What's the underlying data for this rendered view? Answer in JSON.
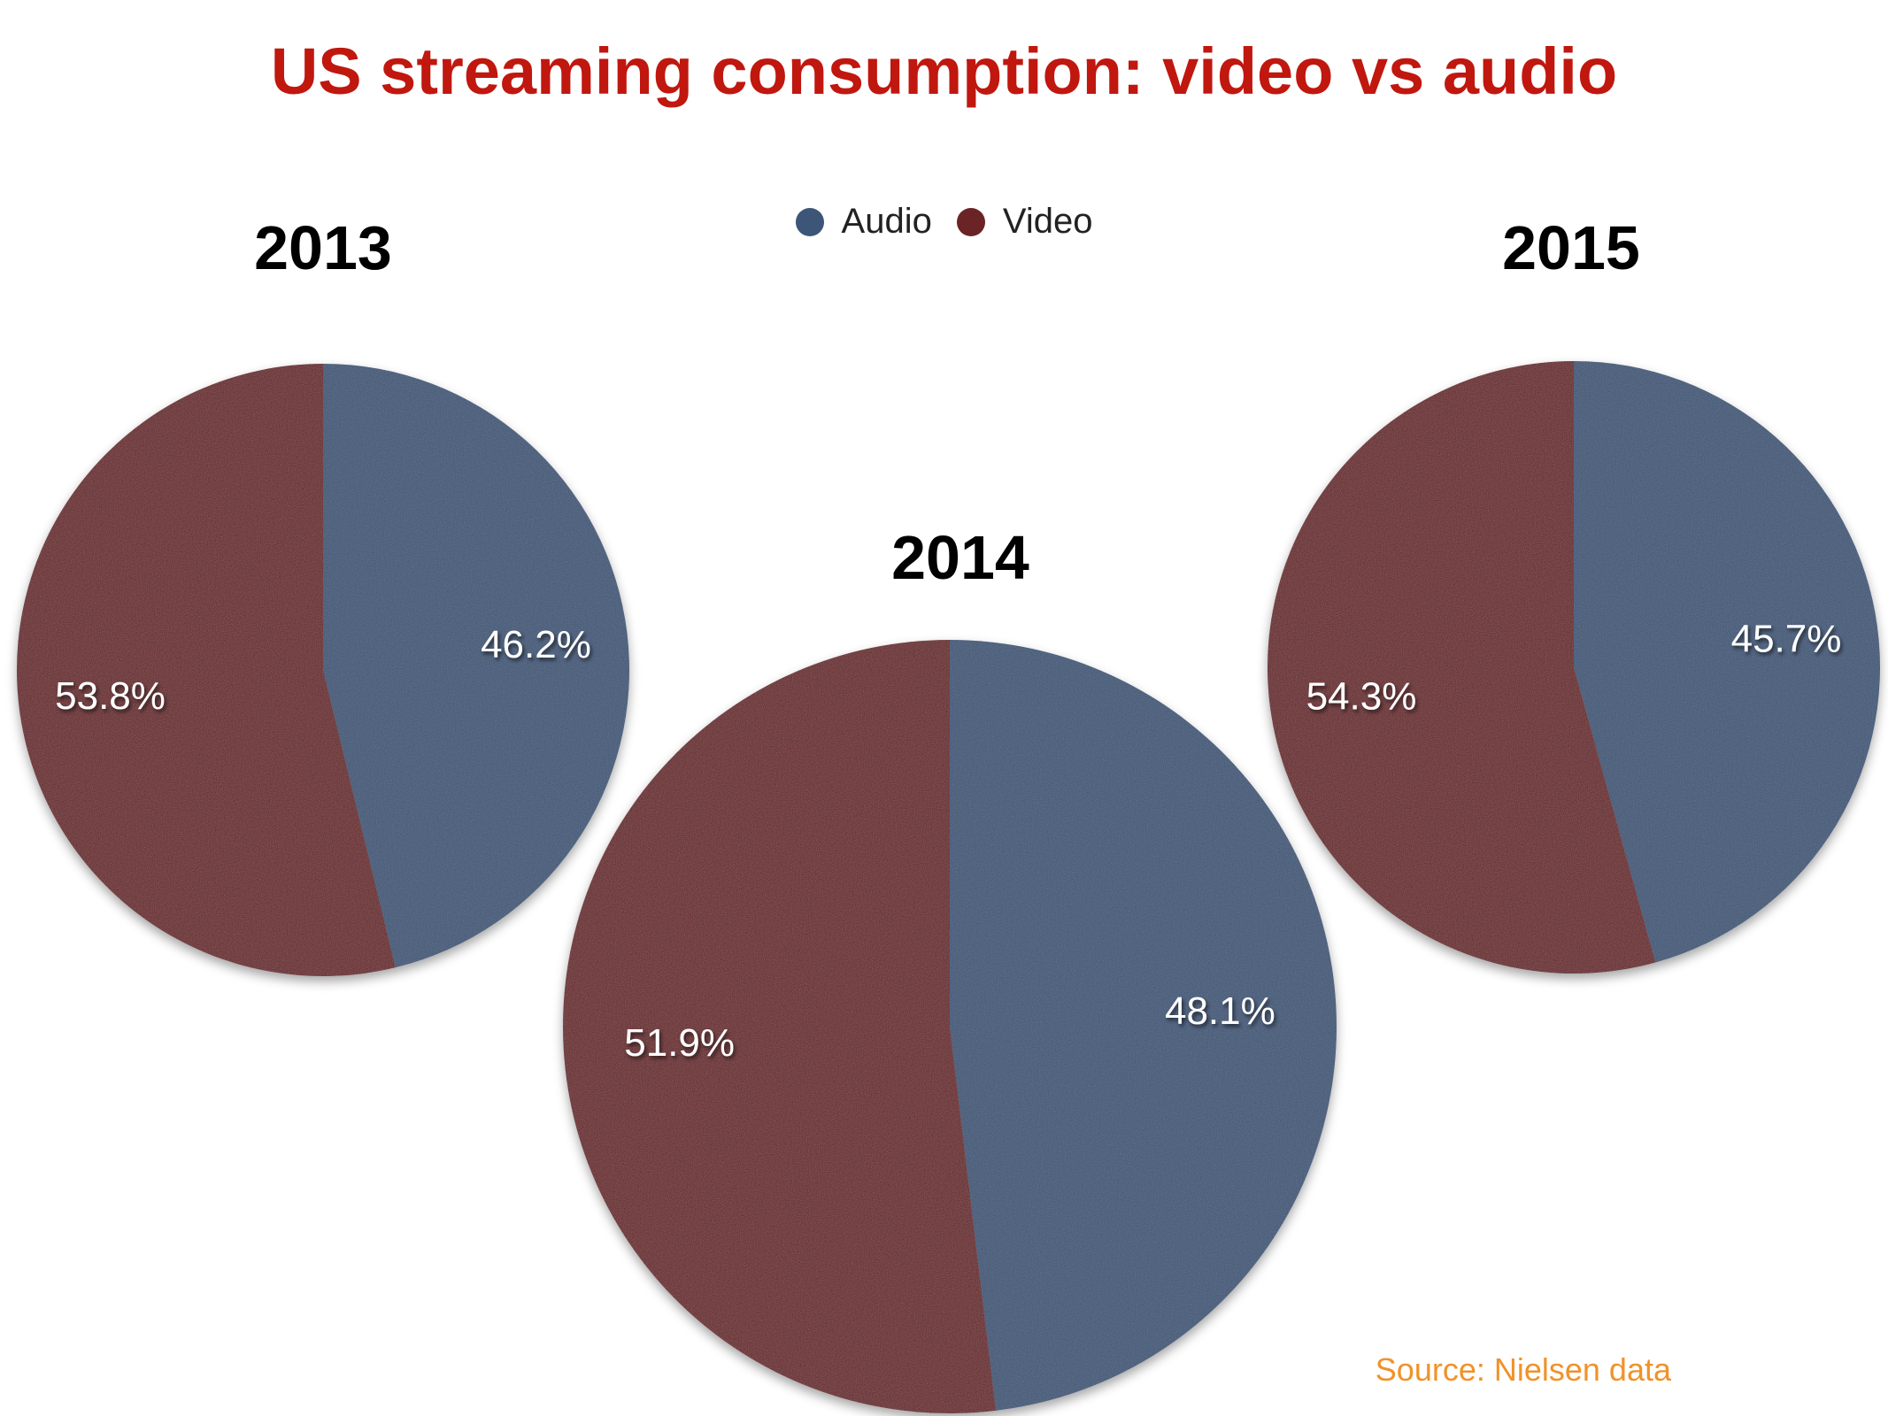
{
  "title": "US streaming consumption: video vs audio",
  "legend": [
    {
      "name": "Audio",
      "color": "#3d5678"
    },
    {
      "name": "Video",
      "color": "#6b2426"
    }
  ],
  "source": "Source: Nielsen data",
  "chart_data": [
    {
      "type": "pie",
      "title": "2013",
      "slices": [
        {
          "name": "Audio",
          "value": 46.2,
          "label": "46.2%"
        },
        {
          "name": "Video",
          "value": 53.8,
          "label": "53.8%"
        }
      ]
    },
    {
      "type": "pie",
      "title": "2014",
      "slices": [
        {
          "name": "Audio",
          "value": 48.1,
          "label": "48.1%"
        },
        {
          "name": "Video",
          "value": 51.9,
          "label": "51.9%"
        }
      ]
    },
    {
      "type": "pie",
      "title": "2015",
      "slices": [
        {
          "name": "Audio",
          "value": 45.7,
          "label": "45.7%"
        },
        {
          "name": "Video",
          "value": 54.3,
          "label": "54.3%"
        }
      ]
    }
  ]
}
